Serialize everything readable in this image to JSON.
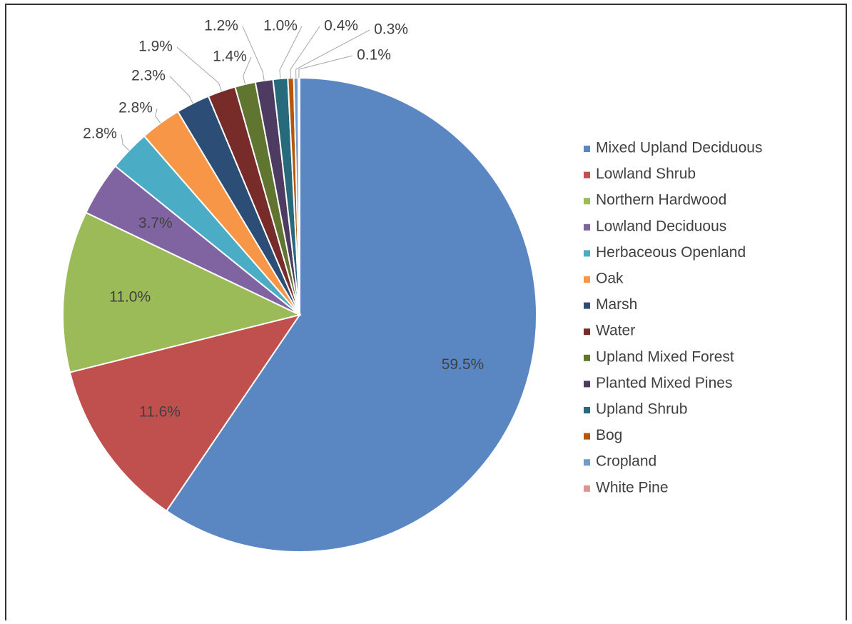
{
  "chart_data": {
    "type": "pie",
    "categories": [
      "Mixed Upland Deciduous",
      "Lowland Shrub",
      "Northern Hardwood",
      "Lowland Deciduous",
      "Herbaceous Openland",
      "Oak",
      "Marsh",
      "Water",
      "Upland Mixed Forest",
      "Planted Mixed Pines",
      "Upland Shrub",
      "Bog",
      "Cropland",
      "White Pine"
    ],
    "values": [
      59.5,
      11.6,
      11,
      3.7,
      2.8,
      2.8,
      2.3,
      1.9,
      1.4,
      1.2,
      1,
      0.4,
      0.3,
      0.1
    ],
    "value_labels": [
      "59.5%",
      "11.6%",
      "11.0%",
      "3.7%",
      "2.8%",
      "2.8%",
      "2.3%",
      "1.9%",
      "1.4%",
      "1.2%",
      "1.0%",
      "0.4%",
      "0.3%",
      "0.1%"
    ],
    "colors": [
      "#5a87c2",
      "#c0504d",
      "#9bbb59",
      "#8064a2",
      "#4bacc6",
      "#f79646",
      "#2c4d75",
      "#772c2a",
      "#5f7530",
      "#4d3b62",
      "#276a7c",
      "#b65708",
      "#729aca",
      "#d99694"
    ],
    "legend": "right"
  }
}
